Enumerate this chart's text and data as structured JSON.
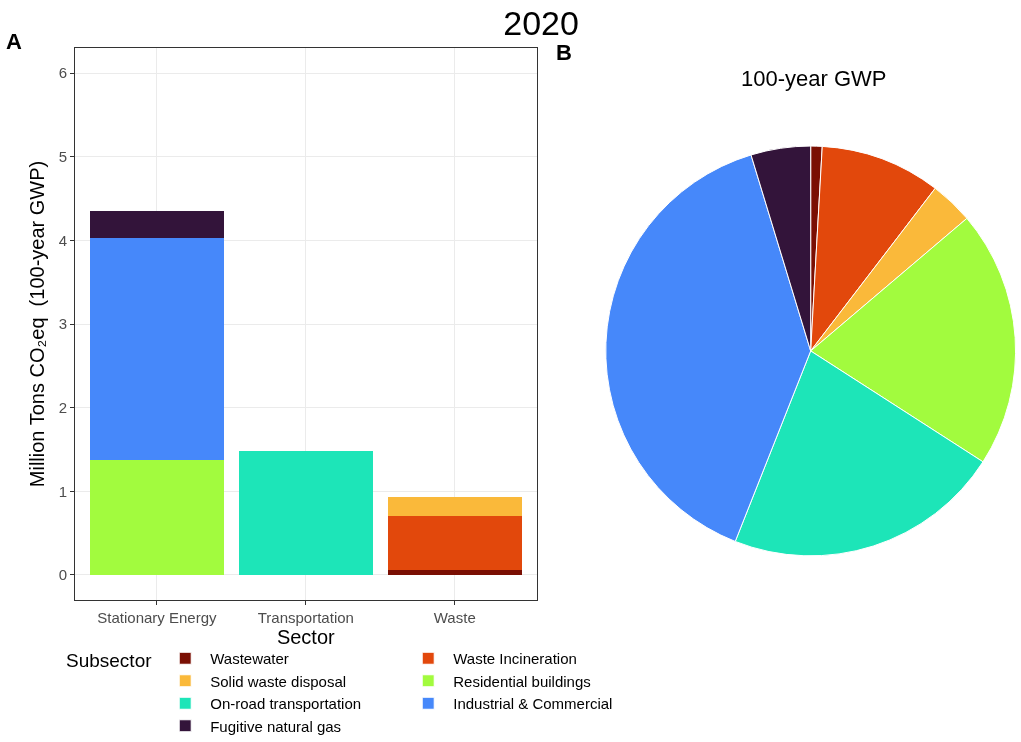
{
  "chart_data": [
    {
      "type": "bar",
      "title": "2020",
      "xlabel": "Sector",
      "ylabel": "Million Tons CO₂eq  (100-year GWP)",
      "annotations": [
        "A"
      ],
      "categories": [
        "Stationary Energy",
        "Transportation",
        "Waste"
      ],
      "stacked": true,
      "grid": true,
      "ylim": [
        -0.3,
        6.3
      ],
      "yticks": [
        0,
        1,
        2,
        3,
        4,
        5,
        6
      ],
      "series": [
        {
          "color": "#a2fb3e",
          "values": [
            1.37,
            null,
            null
          ]
        },
        {
          "color": "#4688fa",
          "values": [
            2.66,
            null,
            null
          ]
        },
        {
          "color": "#33143a",
          "values": [
            0.32,
            null,
            null
          ]
        },
        {
          "color": "#1de5b8",
          "values": [
            null,
            1.48,
            null
          ]
        },
        {
          "color": "#7a0f03",
          "values": [
            null,
            null,
            0.06
          ]
        },
        {
          "color": "#e2480c",
          "values": [
            null,
            null,
            0.64
          ]
        },
        {
          "color": "#fab93a",
          "values": [
            null,
            null,
            0.23
          ]
        }
      ]
    },
    {
      "type": "pie",
      "title": "100-year GWP",
      "legend_title": "Subsector",
      "legend": "bottom",
      "annotations": [
        "B"
      ],
      "categories": [
        "Wastewater",
        "Waste Incineration",
        "Solid waste disposal",
        "Residential buildings",
        "On-road transportation",
        "Industrial & Commercial",
        "Fugitive natural gas"
      ],
      "values": [
        0.9,
        9.5,
        3.4,
        20.3,
        21.9,
        39.3,
        4.7
      ],
      "colors": [
        "#7a0f03",
        "#e2480c",
        "#fab93a",
        "#a2fb3e",
        "#1de5b8",
        "#4688fa",
        "#33143a"
      ]
    }
  ]
}
